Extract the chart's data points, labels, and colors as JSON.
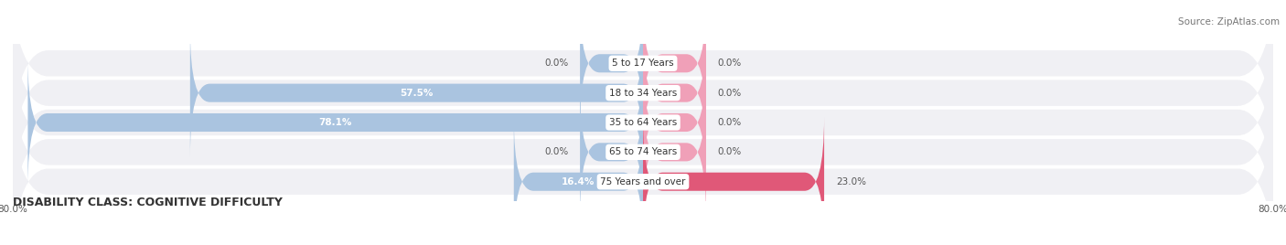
{
  "title": "DISABILITY CLASS: COGNITIVE DIFFICULTY",
  "source": "Source: ZipAtlas.com",
  "categories": [
    "5 to 17 Years",
    "18 to 34 Years",
    "35 to 64 Years",
    "65 to 74 Years",
    "75 Years and over"
  ],
  "male_values": [
    0.0,
    57.5,
    78.1,
    0.0,
    16.4
  ],
  "female_values": [
    0.0,
    0.0,
    0.0,
    0.0,
    23.0
  ],
  "male_color": "#aac4e0",
  "female_color": "#f0a0b8",
  "female_dark_color": "#e05878",
  "row_bg_color": "#efefef",
  "x_min": -80.0,
  "x_max": 80.0,
  "stub_size": 8.0,
  "title_fontsize": 9,
  "source_fontsize": 7.5,
  "label_fontsize": 7.5,
  "value_fontsize": 7.5
}
